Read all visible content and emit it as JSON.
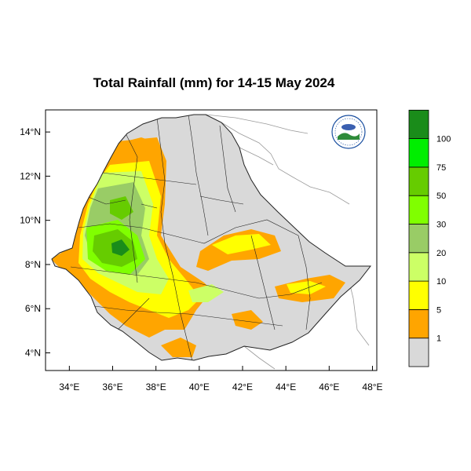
{
  "title": "Total Rainfall (mm) for 14-15 May 2024",
  "axes": {
    "x_ticks": [
      "34°E",
      "36°E",
      "38°E",
      "40°E",
      "42°E",
      "44°E",
      "46°E",
      "48°E"
    ],
    "y_ticks": [
      "14°N",
      "12°N",
      "10°N",
      "8°N",
      "6°N",
      "4°N"
    ],
    "x_range": [
      32.9,
      48.2
    ],
    "y_range": [
      3.2,
      15.0
    ]
  },
  "legend": {
    "title": "",
    "classes": [
      {
        "label": "1",
        "color": "#d9d9d9"
      },
      {
        "label": "5",
        "color": "#ffa500"
      },
      {
        "label": "10",
        "color": "#ffff00"
      },
      {
        "label": "20",
        "color": "#ccff66"
      },
      {
        "label": "30",
        "color": "#99cc66"
      },
      {
        "label": "50",
        "color": "#80ff00"
      },
      {
        "label": "75",
        "color": "#66cc00"
      },
      {
        "label": "100",
        "color": "#00ee00"
      },
      {
        "label": "",
        "color": "#1a8c1a"
      }
    ]
  },
  "colors": {
    "country_fill": "#d9d9d9",
    "boundary": "#222222",
    "frame": "#000000",
    "neighbor_lines": "#9a9a9a"
  },
  "logo": {
    "icon": "meteorology-agency-logo"
  }
}
